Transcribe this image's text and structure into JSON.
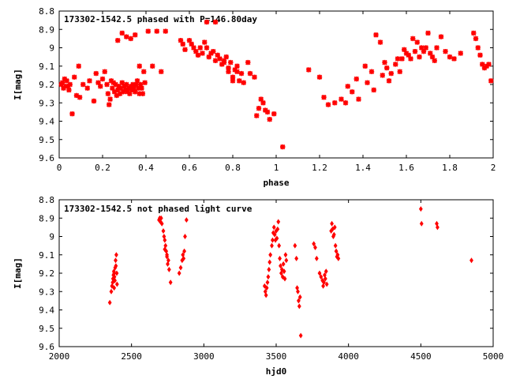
{
  "chart_data": [
    {
      "type": "scatter",
      "title": "173302-1542.5 phased with P=146.80day",
      "xlabel": "phase",
      "ylabel": "I[mag]",
      "xlim": [
        0,
        2
      ],
      "ylim": [
        8.8,
        9.6
      ],
      "y_inverted": true,
      "xticks": [
        0,
        0.2,
        0.4,
        0.6,
        0.8,
        1,
        1.2,
        1.4,
        1.6,
        1.8,
        2
      ],
      "xtick_labels": [
        "0",
        "0.2",
        "0.4",
        "0.6",
        "0.8",
        "1",
        "1.2",
        "1.4",
        "1.6",
        "1.8",
        "2"
      ],
      "yticks": [
        8.8,
        8.9,
        9.0,
        9.1,
        9.2,
        9.3,
        9.4,
        9.5,
        9.6
      ],
      "ytick_labels": [
        "8.8",
        "8.9",
        "9",
        "9.1",
        "9.2",
        "9.3",
        "9.4",
        "9.5",
        "9.6"
      ],
      "grid": false,
      "marker_color": "#ff0000",
      "points": [
        [
          0.01,
          9.2
        ],
        [
          0.015,
          9.19
        ],
        [
          0.02,
          9.22
        ],
        [
          0.025,
          9.17
        ],
        [
          0.03,
          9.21
        ],
        [
          0.035,
          9.18
        ],
        [
          0.04,
          9.21
        ],
        [
          0.045,
          9.23
        ],
        [
          0.05,
          9.2
        ],
        [
          0.06,
          9.36
        ],
        [
          0.07,
          9.16
        ],
        [
          0.08,
          9.26
        ],
        [
          0.09,
          9.1
        ],
        [
          0.095,
          9.27
        ],
        [
          0.11,
          9.2
        ],
        [
          0.13,
          9.22
        ],
        [
          0.14,
          9.18
        ],
        [
          0.16,
          9.29
        ],
        [
          0.17,
          9.14
        ],
        [
          0.18,
          9.19
        ],
        [
          0.19,
          9.21
        ],
        [
          0.2,
          9.17
        ],
        [
          0.21,
          9.13
        ],
        [
          0.22,
          9.2
        ],
        [
          0.225,
          9.25
        ],
        [
          0.23,
          9.31
        ],
        [
          0.235,
          9.28
        ],
        [
          0.24,
          9.18
        ],
        [
          0.245,
          9.22
        ],
        [
          0.25,
          9.19
        ],
        [
          0.255,
          9.24
        ],
        [
          0.26,
          9.2
        ],
        [
          0.265,
          9.26
        ],
        [
          0.27,
          9.23
        ],
        [
          0.275,
          9.21
        ],
        [
          0.28,
          9.25
        ],
        [
          0.285,
          9.22
        ],
        [
          0.29,
          9.19
        ],
        [
          0.295,
          9.24
        ],
        [
          0.3,
          9.21
        ],
        [
          0.305,
          9.23
        ],
        [
          0.31,
          9.2
        ],
        [
          0.315,
          9.24
        ],
        [
          0.32,
          9.22
        ],
        [
          0.325,
          9.25
        ],
        [
          0.33,
          9.21
        ],
        [
          0.335,
          9.23
        ],
        [
          0.34,
          9.2
        ],
        [
          0.345,
          9.22
        ],
        [
          0.35,
          9.24
        ],
        [
          0.355,
          9.2
        ],
        [
          0.36,
          9.18
        ],
        [
          0.365,
          9.22
        ],
        [
          0.37,
          9.25
        ],
        [
          0.38,
          9.22
        ],
        [
          0.27,
          8.96
        ],
        [
          0.29,
          8.92
        ],
        [
          0.31,
          8.94
        ],
        [
          0.33,
          8.95
        ],
        [
          0.35,
          8.93
        ],
        [
          0.37,
          9.1
        ],
        [
          0.39,
          9.13
        ],
        [
          0.41,
          8.91
        ],
        [
          0.43,
          9.1
        ],
        [
          0.45,
          8.91
        ],
        [
          0.47,
          9.13
        ],
        [
          0.49,
          8.91
        ],
        [
          0.385,
          9.25
        ],
        [
          0.375,
          9.2
        ],
        [
          0.395,
          9.19
        ],
        [
          0.56,
          8.96
        ],
        [
          0.57,
          8.98
        ],
        [
          0.58,
          9.01
        ],
        [
          0.6,
          8.96
        ],
        [
          0.61,
          8.98
        ],
        [
          0.62,
          9.0
        ],
        [
          0.63,
          9.02
        ],
        [
          0.64,
          9.04
        ],
        [
          0.65,
          9.0
        ],
        [
          0.66,
          9.03
        ],
        [
          0.67,
          8.97
        ],
        [
          0.68,
          9.0
        ],
        [
          0.69,
          9.05
        ],
        [
          0.7,
          9.03
        ],
        [
          0.71,
          9.02
        ],
        [
          0.72,
          9.07
        ],
        [
          0.73,
          9.04
        ],
        [
          0.74,
          9.06
        ],
        [
          0.75,
          9.09
        ],
        [
          0.76,
          9.08
        ],
        [
          0.77,
          9.05
        ],
        [
          0.78,
          9.11
        ],
        [
          0.79,
          9.08
        ],
        [
          0.8,
          9.16
        ],
        [
          0.81,
          9.12
        ],
        [
          0.82,
          9.13
        ],
        [
          0.83,
          9.18
        ],
        [
          0.84,
          9.14
        ],
        [
          0.85,
          9.19
        ],
        [
          0.68,
          8.86
        ],
        [
          0.72,
          8.86
        ],
        [
          0.76,
          9.07
        ],
        [
          0.78,
          9.13
        ],
        [
          0.8,
          9.18
        ],
        [
          0.82,
          9.1
        ],
        [
          0.88,
          9.14
        ],
        [
          0.87,
          9.08
        ],
        [
          0.9,
          9.16
        ],
        [
          0.91,
          9.37
        ],
        [
          0.92,
          9.33
        ],
        [
          0.93,
          9.28
        ],
        [
          0.94,
          9.3
        ],
        [
          0.95,
          9.34
        ],
        [
          0.96,
          9.35
        ],
        [
          0.97,
          9.39
        ],
        [
          0.99,
          9.36
        ],
        [
          1.03,
          9.54
        ],
        [
          1.15,
          9.12
        ],
        [
          1.2,
          9.16
        ],
        [
          1.22,
          9.27
        ],
        [
          1.24,
          9.31
        ],
        [
          1.27,
          9.3
        ],
        [
          1.3,
          9.28
        ],
        [
          1.32,
          9.3
        ],
        [
          1.33,
          9.21
        ],
        [
          1.35,
          9.24
        ],
        [
          1.37,
          9.17
        ],
        [
          1.38,
          9.28
        ],
        [
          1.41,
          9.1
        ],
        [
          1.42,
          9.19
        ],
        [
          1.44,
          9.13
        ],
        [
          1.45,
          9.23
        ],
        [
          1.46,
          8.93
        ],
        [
          1.48,
          8.97
        ],
        [
          1.49,
          9.15
        ],
        [
          1.5,
          9.08
        ],
        [
          1.51,
          9.11
        ],
        [
          1.52,
          9.18
        ],
        [
          1.53,
          9.14
        ],
        [
          1.55,
          9.09
        ],
        [
          1.56,
          9.06
        ],
        [
          1.57,
          9.13
        ],
        [
          1.58,
          9.06
        ],
        [
          1.59,
          9.01
        ],
        [
          1.6,
          9.03
        ],
        [
          1.61,
          9.04
        ],
        [
          1.62,
          9.06
        ],
        [
          1.63,
          8.95
        ],
        [
          1.64,
          9.02
        ],
        [
          1.65,
          8.97
        ],
        [
          1.66,
          9.05
        ],
        [
          1.67,
          9.0
        ],
        [
          1.68,
          9.02
        ],
        [
          1.69,
          9.0
        ],
        [
          1.7,
          8.92
        ],
        [
          1.71,
          9.03
        ],
        [
          1.72,
          9.05
        ],
        [
          1.73,
          9.07
        ],
        [
          1.74,
          9.0
        ],
        [
          1.76,
          8.94
        ],
        [
          1.78,
          9.02
        ],
        [
          1.8,
          9.05
        ],
        [
          1.82,
          9.06
        ],
        [
          1.85,
          9.03
        ],
        [
          1.91,
          8.92
        ],
        [
          1.92,
          8.95
        ],
        [
          1.93,
          9.0
        ],
        [
          1.94,
          9.04
        ],
        [
          1.95,
          9.09
        ],
        [
          1.96,
          9.11
        ],
        [
          1.97,
          9.1
        ],
        [
          1.98,
          9.09
        ],
        [
          1.99,
          9.18
        ]
      ]
    },
    {
      "type": "scatter",
      "title": "173302-1542.5 not phased light curve",
      "xlabel": "hjd0",
      "ylabel": "I[mag]",
      "xlim": [
        2000,
        5000
      ],
      "ylim": [
        8.8,
        9.6
      ],
      "y_inverted": true,
      "xticks": [
        2000,
        2500,
        3000,
        3500,
        4000,
        4500,
        5000
      ],
      "xtick_labels": [
        "2000",
        "2500",
        "3000",
        "3500",
        "4000",
        "4500",
        "5000"
      ],
      "yticks": [
        8.8,
        8.9,
        9.0,
        9.1,
        9.2,
        9.3,
        9.4,
        9.5,
        9.6
      ],
      "ytick_labels": [
        "8.8",
        "8.9",
        "9",
        "9.1",
        "9.2",
        "9.3",
        "9.4",
        "9.5",
        "9.6"
      ],
      "grid": false,
      "marker_color": "#ff0000",
      "points": [
        [
          2350,
          9.36
        ],
        [
          2360,
          9.3
        ],
        [
          2365,
          9.27
        ],
        [
          2370,
          9.25
        ],
        [
          2372,
          9.23
        ],
        [
          2375,
          9.21
        ],
        [
          2378,
          9.19
        ],
        [
          2380,
          9.2
        ],
        [
          2382,
          9.22
        ],
        [
          2385,
          9.24
        ],
        [
          2387,
          9.17
        ],
        [
          2390,
          9.13
        ],
        [
          2392,
          9.16
        ],
        [
          2395,
          9.1
        ],
        [
          2398,
          9.2
        ],
        [
          2400,
          9.26
        ],
        [
          2380,
          9.28
        ],
        [
          2690,
          8.91
        ],
        [
          2695,
          8.9
        ],
        [
          2700,
          8.92
        ],
        [
          2705,
          8.9
        ],
        [
          2710,
          8.93
        ],
        [
          2720,
          8.97
        ],
        [
          2725,
          9.0
        ],
        [
          2730,
          9.02
        ],
        [
          2735,
          9.05
        ],
        [
          2740,
          9.08
        ],
        [
          2745,
          9.11
        ],
        [
          2750,
          9.15
        ],
        [
          2755,
          9.13
        ],
        [
          2760,
          9.18
        ],
        [
          2770,
          9.25
        ],
        [
          2730,
          9.07
        ],
        [
          2745,
          9.1
        ],
        [
          2830,
          9.2
        ],
        [
          2840,
          9.17
        ],
        [
          2850,
          9.13
        ],
        [
          2855,
          9.1
        ],
        [
          2860,
          9.12
        ],
        [
          2865,
          9.08
        ],
        [
          2870,
          9.0
        ],
        [
          2880,
          8.91
        ],
        [
          3420,
          9.27
        ],
        [
          3425,
          9.3
        ],
        [
          3430,
          9.32
        ],
        [
          3435,
          9.28
        ],
        [
          3440,
          9.25
        ],
        [
          3445,
          9.22
        ],
        [
          3450,
          9.18
        ],
        [
          3455,
          9.14
        ],
        [
          3460,
          9.1
        ],
        [
          3470,
          9.05
        ],
        [
          3475,
          9.02
        ],
        [
          3480,
          8.98
        ],
        [
          3485,
          8.95
        ],
        [
          3490,
          8.99
        ],
        [
          3495,
          9.02
        ],
        [
          3500,
          8.97
        ],
        [
          3505,
          9.01
        ],
        [
          3510,
          8.96
        ],
        [
          3515,
          8.92
        ],
        [
          3520,
          9.05
        ],
        [
          3525,
          9.12
        ],
        [
          3530,
          9.16
        ],
        [
          3535,
          9.2
        ],
        [
          3540,
          9.18
        ],
        [
          3545,
          9.22
        ],
        [
          3550,
          9.15
        ],
        [
          3555,
          9.19
        ],
        [
          3560,
          9.23
        ],
        [
          3565,
          9.1
        ],
        [
          3570,
          9.13
        ],
        [
          3630,
          9.05
        ],
        [
          3640,
          9.12
        ],
        [
          3645,
          9.28
        ],
        [
          3650,
          9.3
        ],
        [
          3655,
          9.35
        ],
        [
          3660,
          9.38
        ],
        [
          3665,
          9.33
        ],
        [
          3670,
          9.54
        ],
        [
          3760,
          9.04
        ],
        [
          3770,
          9.06
        ],
        [
          3780,
          9.12
        ],
        [
          3800,
          9.2
        ],
        [
          3810,
          9.22
        ],
        [
          3820,
          9.24
        ],
        [
          3825,
          9.27
        ],
        [
          3830,
          9.25
        ],
        [
          3835,
          9.21
        ],
        [
          3840,
          9.23
        ],
        [
          3845,
          9.19
        ],
        [
          3850,
          9.26
        ],
        [
          3880,
          8.97
        ],
        [
          3885,
          8.93
        ],
        [
          3890,
          8.96
        ],
        [
          3895,
          9.0
        ],
        [
          3900,
          8.99
        ],
        [
          3905,
          8.95
        ],
        [
          3910,
          9.05
        ],
        [
          3915,
          9.08
        ],
        [
          3920,
          9.11
        ],
        [
          3925,
          9.1
        ],
        [
          3930,
          9.12
        ],
        [
          4500,
          8.85
        ],
        [
          4505,
          8.93
        ],
        [
          4610,
          8.93
        ],
        [
          4615,
          8.95
        ],
        [
          4850,
          9.13
        ]
      ]
    }
  ]
}
